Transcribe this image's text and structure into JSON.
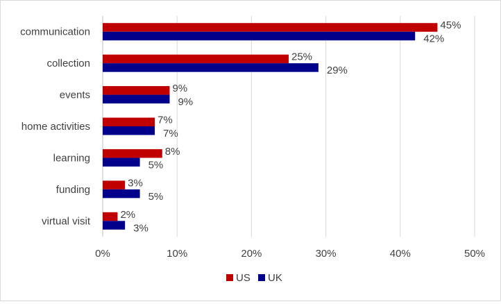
{
  "chart_data": {
    "type": "bar",
    "orientation": "horizontal",
    "categories": [
      "communication",
      "collection",
      "events",
      "home activities",
      "learning",
      "funding",
      "virtual visit"
    ],
    "series": [
      {
        "name": "US",
        "color": "#c00000",
        "values": [
          45,
          25,
          9,
          7,
          8,
          3,
          2
        ],
        "labels": [
          "45%",
          "25%",
          "9%",
          "7%",
          "8%",
          "3%",
          "2%"
        ]
      },
      {
        "name": "UK",
        "color": "#00008b",
        "values": [
          42,
          29,
          9,
          7,
          5,
          5,
          3
        ],
        "labels": [
          "42%",
          "29%",
          "9%",
          "7%",
          "5%",
          "5%",
          "3%"
        ]
      }
    ],
    "xlim": [
      0,
      50
    ],
    "xticks": [
      0,
      10,
      20,
      30,
      40,
      50
    ],
    "xtick_labels": [
      "0%",
      "10%",
      "20%",
      "30%",
      "40%",
      "50%"
    ],
    "grid": "vertical",
    "legend": "bottom-center",
    "title": "",
    "xlabel": "",
    "ylabel": ""
  }
}
